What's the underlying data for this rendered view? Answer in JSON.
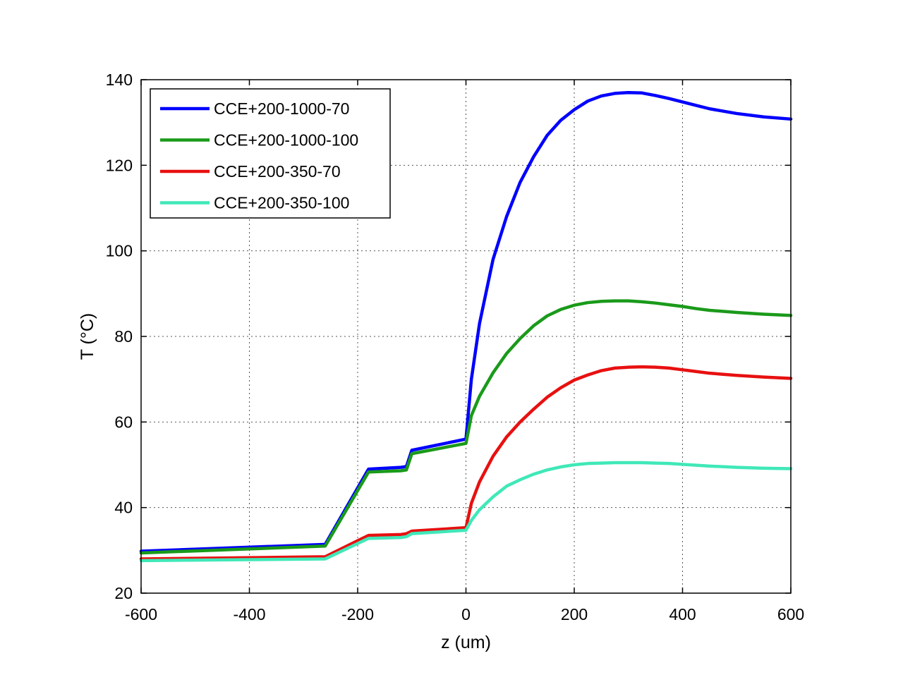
{
  "chart_data": {
    "type": "line",
    "title": "",
    "xlabel": "z (um)",
    "ylabel": "T (°C)",
    "xlim": [
      -600,
      600
    ],
    "ylim": [
      20,
      140
    ],
    "xticks": [
      -600,
      -400,
      -200,
      0,
      200,
      400,
      600
    ],
    "yticks": [
      20,
      40,
      60,
      80,
      100,
      120,
      140
    ],
    "grid": true,
    "legend_position": "top-left",
    "series": [
      {
        "name": "CCE+200-1000-70",
        "color": "#0000ff",
        "x": [
          -600,
          -260,
          -180,
          -120,
          -110,
          -100,
          0,
          10,
          25,
          50,
          75,
          100,
          125,
          150,
          175,
          200,
          225,
          250,
          275,
          300,
          325,
          350,
          375,
          400,
          425,
          450,
          500,
          550,
          600
        ],
        "y": [
          29.8,
          31.4,
          49.0,
          49.4,
          49.6,
          53.4,
          56.0,
          70,
          83,
          98,
          108,
          116,
          122,
          127,
          130.5,
          133,
          135,
          136.2,
          136.8,
          137.0,
          136.9,
          136.3,
          135.6,
          134.8,
          134.0,
          133.2,
          132.1,
          131.3,
          130.8
        ]
      },
      {
        "name": "CCE+200-1000-100",
        "color": "#1a9a1a",
        "x": [
          -600,
          -260,
          -180,
          -120,
          -110,
          -100,
          0,
          10,
          25,
          50,
          75,
          100,
          125,
          150,
          175,
          200,
          225,
          250,
          275,
          300,
          325,
          350,
          375,
          400,
          425,
          450,
          500,
          550,
          600
        ],
        "y": [
          29.4,
          31.0,
          48.3,
          48.6,
          48.8,
          52.6,
          55.0,
          61.5,
          66,
          71.5,
          76,
          79.5,
          82.5,
          84.8,
          86.3,
          87.3,
          87.9,
          88.2,
          88.3,
          88.3,
          88.1,
          87.8,
          87.4,
          87.0,
          86.5,
          86.1,
          85.6,
          85.2,
          84.9
        ]
      },
      {
        "name": "CCE+200-350-70",
        "color": "#e81010",
        "x": [
          -600,
          -260,
          -180,
          -120,
          -110,
          -100,
          0,
          10,
          25,
          50,
          75,
          100,
          125,
          150,
          175,
          200,
          225,
          250,
          275,
          300,
          325,
          350,
          375,
          400,
          425,
          450,
          500,
          550,
          600
        ],
        "y": [
          28.0,
          28.5,
          33.5,
          33.7,
          33.9,
          34.5,
          35.3,
          41,
          46,
          52,
          56.5,
          60,
          63,
          65.8,
          68,
          69.8,
          71,
          72,
          72.6,
          72.8,
          72.9,
          72.8,
          72.6,
          72.2,
          71.8,
          71.4,
          70.9,
          70.5,
          70.2
        ]
      },
      {
        "name": "CCE+200-350-100",
        "color": "#40e8b8",
        "x": [
          -600,
          -260,
          -180,
          -120,
          -110,
          -100,
          0,
          10,
          25,
          50,
          75,
          100,
          125,
          150,
          175,
          200,
          225,
          250,
          275,
          300,
          325,
          350,
          375,
          400,
          425,
          450,
          500,
          550,
          600
        ],
        "y": [
          27.6,
          28.0,
          32.8,
          33.0,
          33.2,
          33.9,
          34.7,
          37.0,
          39.5,
          42.5,
          45.0,
          46.5,
          47.8,
          48.8,
          49.5,
          50.0,
          50.3,
          50.4,
          50.5,
          50.5,
          50.5,
          50.4,
          50.3,
          50.1,
          49.9,
          49.7,
          49.4,
          49.2,
          49.1
        ]
      }
    ]
  }
}
